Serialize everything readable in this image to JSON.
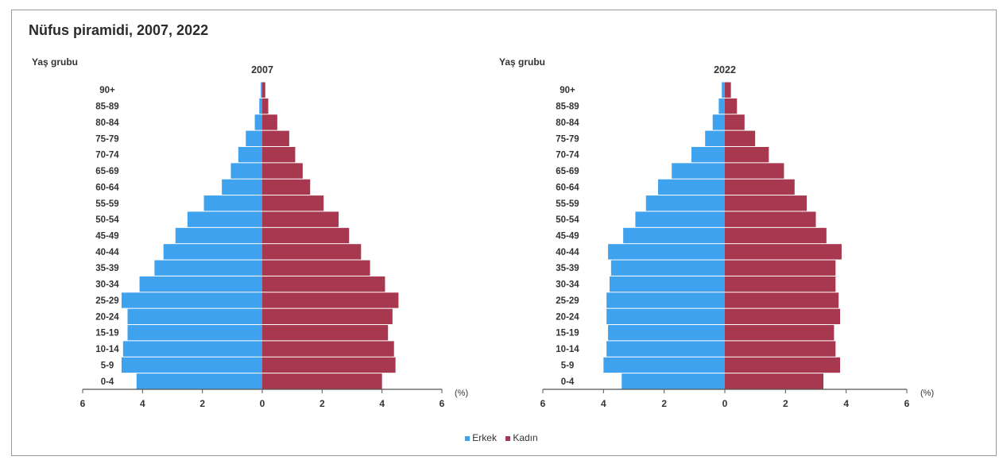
{
  "title": "Nüfus piramidi, 2007, 2022",
  "colors": {
    "erkek": "#3fa2ee",
    "kadin": "#a8384f",
    "axis": "#555555"
  },
  "legend": {
    "erkek": "Erkek",
    "kadin": "Kadın"
  },
  "chart_data": [
    {
      "type": "bar",
      "orientation": "horizontal-pyramid",
      "title": "2007",
      "ylabel": "Yaş grubu",
      "xlabel": "(%)",
      "xlim": [
        -6,
        6
      ],
      "xticks": [
        "6",
        "4",
        "2",
        "0",
        "2",
        "4",
        "6"
      ],
      "categories": [
        "90+",
        "85-89",
        "80-84",
        "75-79",
        "70-74",
        "65-69",
        "60-64",
        "55-59",
        "50-54",
        "45-49",
        "40-44",
        "35-39",
        "30-34",
        "25-29",
        "20-24",
        "15-19",
        "10-14",
        "5-9",
        "0-4"
      ],
      "series": [
        {
          "name": "Erkek",
          "values": [
            0.05,
            0.1,
            0.25,
            0.55,
            0.8,
            1.05,
            1.35,
            1.95,
            2.5,
            2.9,
            3.3,
            3.6,
            4.1,
            4.7,
            4.5,
            4.5,
            4.65,
            4.7,
            4.2
          ]
        },
        {
          "name": "Kadın",
          "values": [
            0.1,
            0.2,
            0.5,
            0.9,
            1.1,
            1.35,
            1.6,
            2.05,
            2.55,
            2.9,
            3.3,
            3.6,
            4.1,
            4.55,
            4.35,
            4.2,
            4.4,
            4.45,
            4.0
          ]
        }
      ]
    },
    {
      "type": "bar",
      "orientation": "horizontal-pyramid",
      "title": "2022",
      "ylabel": "Yaş grubu",
      "xlabel": "(%)",
      "xlim": [
        -6,
        6
      ],
      "xticks": [
        "6",
        "4",
        "2",
        "0",
        "2",
        "4",
        "6"
      ],
      "categories": [
        "90+",
        "85-89",
        "80-84",
        "75-79",
        "70-74",
        "65-69",
        "60-64",
        "55-59",
        "50-54",
        "45-49",
        "40-44",
        "35-39",
        "30-34",
        "25-29",
        "20-24",
        "15-19",
        "10-14",
        "5-9",
        "0-4"
      ],
      "series": [
        {
          "name": "Erkek",
          "values": [
            0.1,
            0.2,
            0.4,
            0.65,
            1.1,
            1.75,
            2.2,
            2.6,
            2.95,
            3.35,
            3.85,
            3.75,
            3.8,
            3.9,
            3.9,
            3.85,
            3.9,
            4.0,
            3.4
          ]
        },
        {
          "name": "Kadın",
          "values": [
            0.2,
            0.4,
            0.65,
            1.0,
            1.45,
            1.95,
            2.3,
            2.7,
            3.0,
            3.35,
            3.85,
            3.65,
            3.65,
            3.75,
            3.8,
            3.6,
            3.65,
            3.8,
            3.25
          ]
        }
      ]
    }
  ]
}
